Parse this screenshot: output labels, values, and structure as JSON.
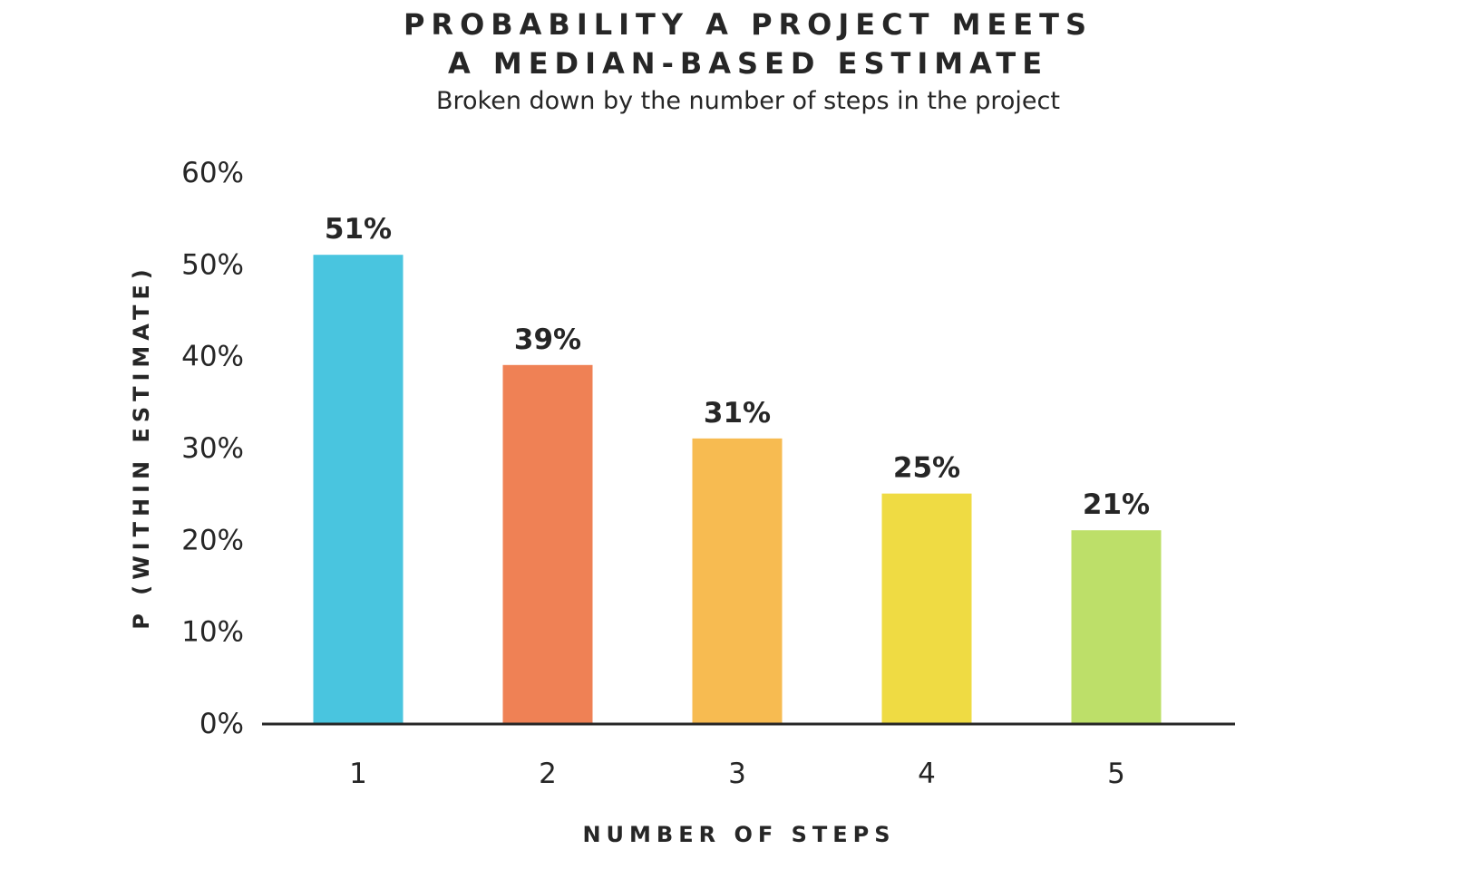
{
  "chart_data": {
    "type": "bar",
    "title_lines": [
      "PROBABILITY A PROJECT MEETS",
      "A MEDIAN-BASED ESTIMATE"
    ],
    "subtitle": "Broken down by the number of steps in the project",
    "xlabel": "NUMBER OF STEPS",
    "ylabel": "P (WITHIN ESTIMATE)",
    "categories": [
      "1",
      "2",
      "3",
      "4",
      "5"
    ],
    "values": [
      51,
      39,
      31,
      25,
      21
    ],
    "data_labels": [
      "51%",
      "39%",
      "31%",
      "25%",
      "21%"
    ],
    "colors": [
      "#49c5df",
      "#ef8155",
      "#f7bb51",
      "#efdb43",
      "#bddf69"
    ],
    "ylim": [
      0,
      60
    ],
    "yticks": [
      0,
      10,
      20,
      30,
      40,
      50,
      60
    ],
    "ytick_labels": [
      "0%",
      "10%",
      "20%",
      "30%",
      "40%",
      "50%",
      "60%"
    ],
    "grid": false,
    "legend": "none"
  }
}
